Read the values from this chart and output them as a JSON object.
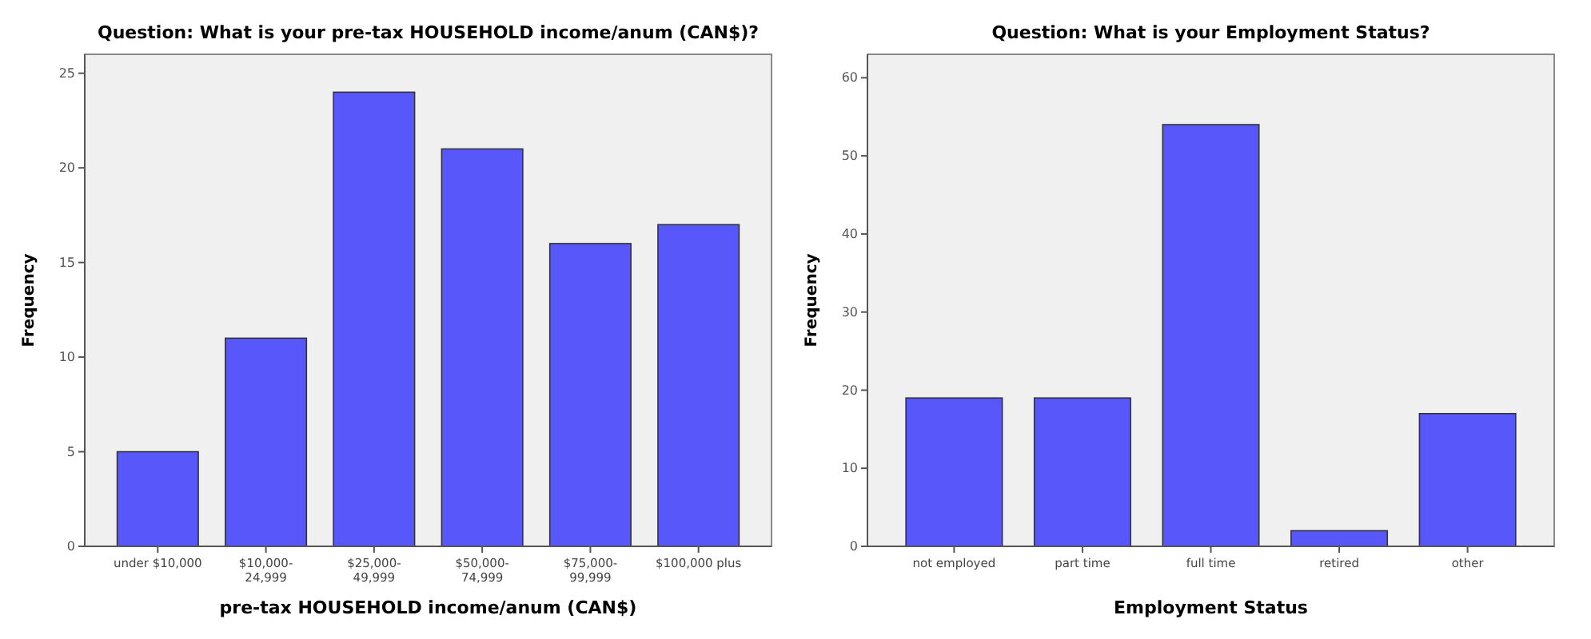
{
  "chart_data": [
    {
      "type": "bar",
      "title": "Question: What is your pre-tax HOUSEHOLD income/anum (CAN$)?",
      "xlabel": "pre-tax HOUSEHOLD income/anum (CAN$)",
      "ylabel": "Frequency",
      "categories": [
        "under $10,000",
        "$10,000-24,999",
        "$25,000-49,999",
        "$50,000-74,999",
        "$75,000-99,999",
        "$100,000 plus"
      ],
      "values": [
        5,
        11,
        24,
        21,
        16,
        17
      ],
      "color": "#5757fa",
      "ylim": [
        0,
        26
      ],
      "yticks": [
        0,
        5,
        10,
        15,
        20,
        25
      ]
    },
    {
      "type": "bar",
      "title": "Question: What is your Employment Status?",
      "xlabel": "Employment Status",
      "ylabel": "Frequency",
      "categories": [
        "not employed",
        "part time",
        "full time",
        "retired",
        "other"
      ],
      "values": [
        19,
        19,
        54,
        2,
        17
      ],
      "color": "#5757fa",
      "ylim": [
        0,
        63
      ],
      "yticks": [
        0,
        10,
        20,
        30,
        40,
        50,
        60
      ]
    }
  ]
}
